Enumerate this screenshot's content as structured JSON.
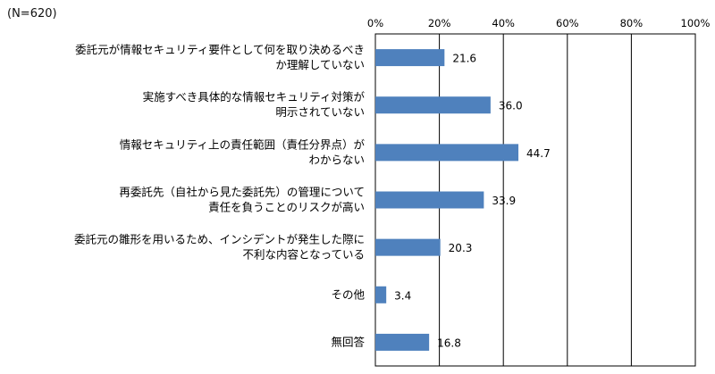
{
  "chart_data": {
    "type": "bar",
    "orientation": "horizontal",
    "sample_note": "(N=620)",
    "categories": [
      [
        "委託元が情報セキュリティ要件として何を取り決めるべき",
        "か理解していない"
      ],
      [
        "実施すべき具体的な情報セキュリティ対策が",
        "明示されていない"
      ],
      [
        "情報セキュリティ上の責任範囲（責任分界点）が",
        "わからない"
      ],
      [
        "再委託先（自社から見た委託先）の管理について",
        "責任を負うことのリスクが高い"
      ],
      [
        "委託元の雛形を用いるため、インシデントが発生した際に",
        "不利な内容となっている"
      ],
      [
        "その他"
      ],
      [
        "無回答"
      ]
    ],
    "values": [
      21.6,
      36.0,
      44.7,
      33.9,
      20.3,
      3.4,
      16.8
    ],
    "value_labels": [
      "21.6",
      "36.0",
      "44.7",
      "33.9",
      "20.3",
      "3.4",
      "16.8"
    ],
    "xlim": [
      0,
      100
    ],
    "xticks": [
      0,
      20,
      40,
      60,
      80,
      100
    ],
    "xtick_labels": [
      "0%",
      "20%",
      "40%",
      "60%",
      "80%",
      "100%"
    ],
    "bar_color": "#4f81bd",
    "grid": true,
    "title": "",
    "xlabel": "",
    "ylabel": ""
  }
}
